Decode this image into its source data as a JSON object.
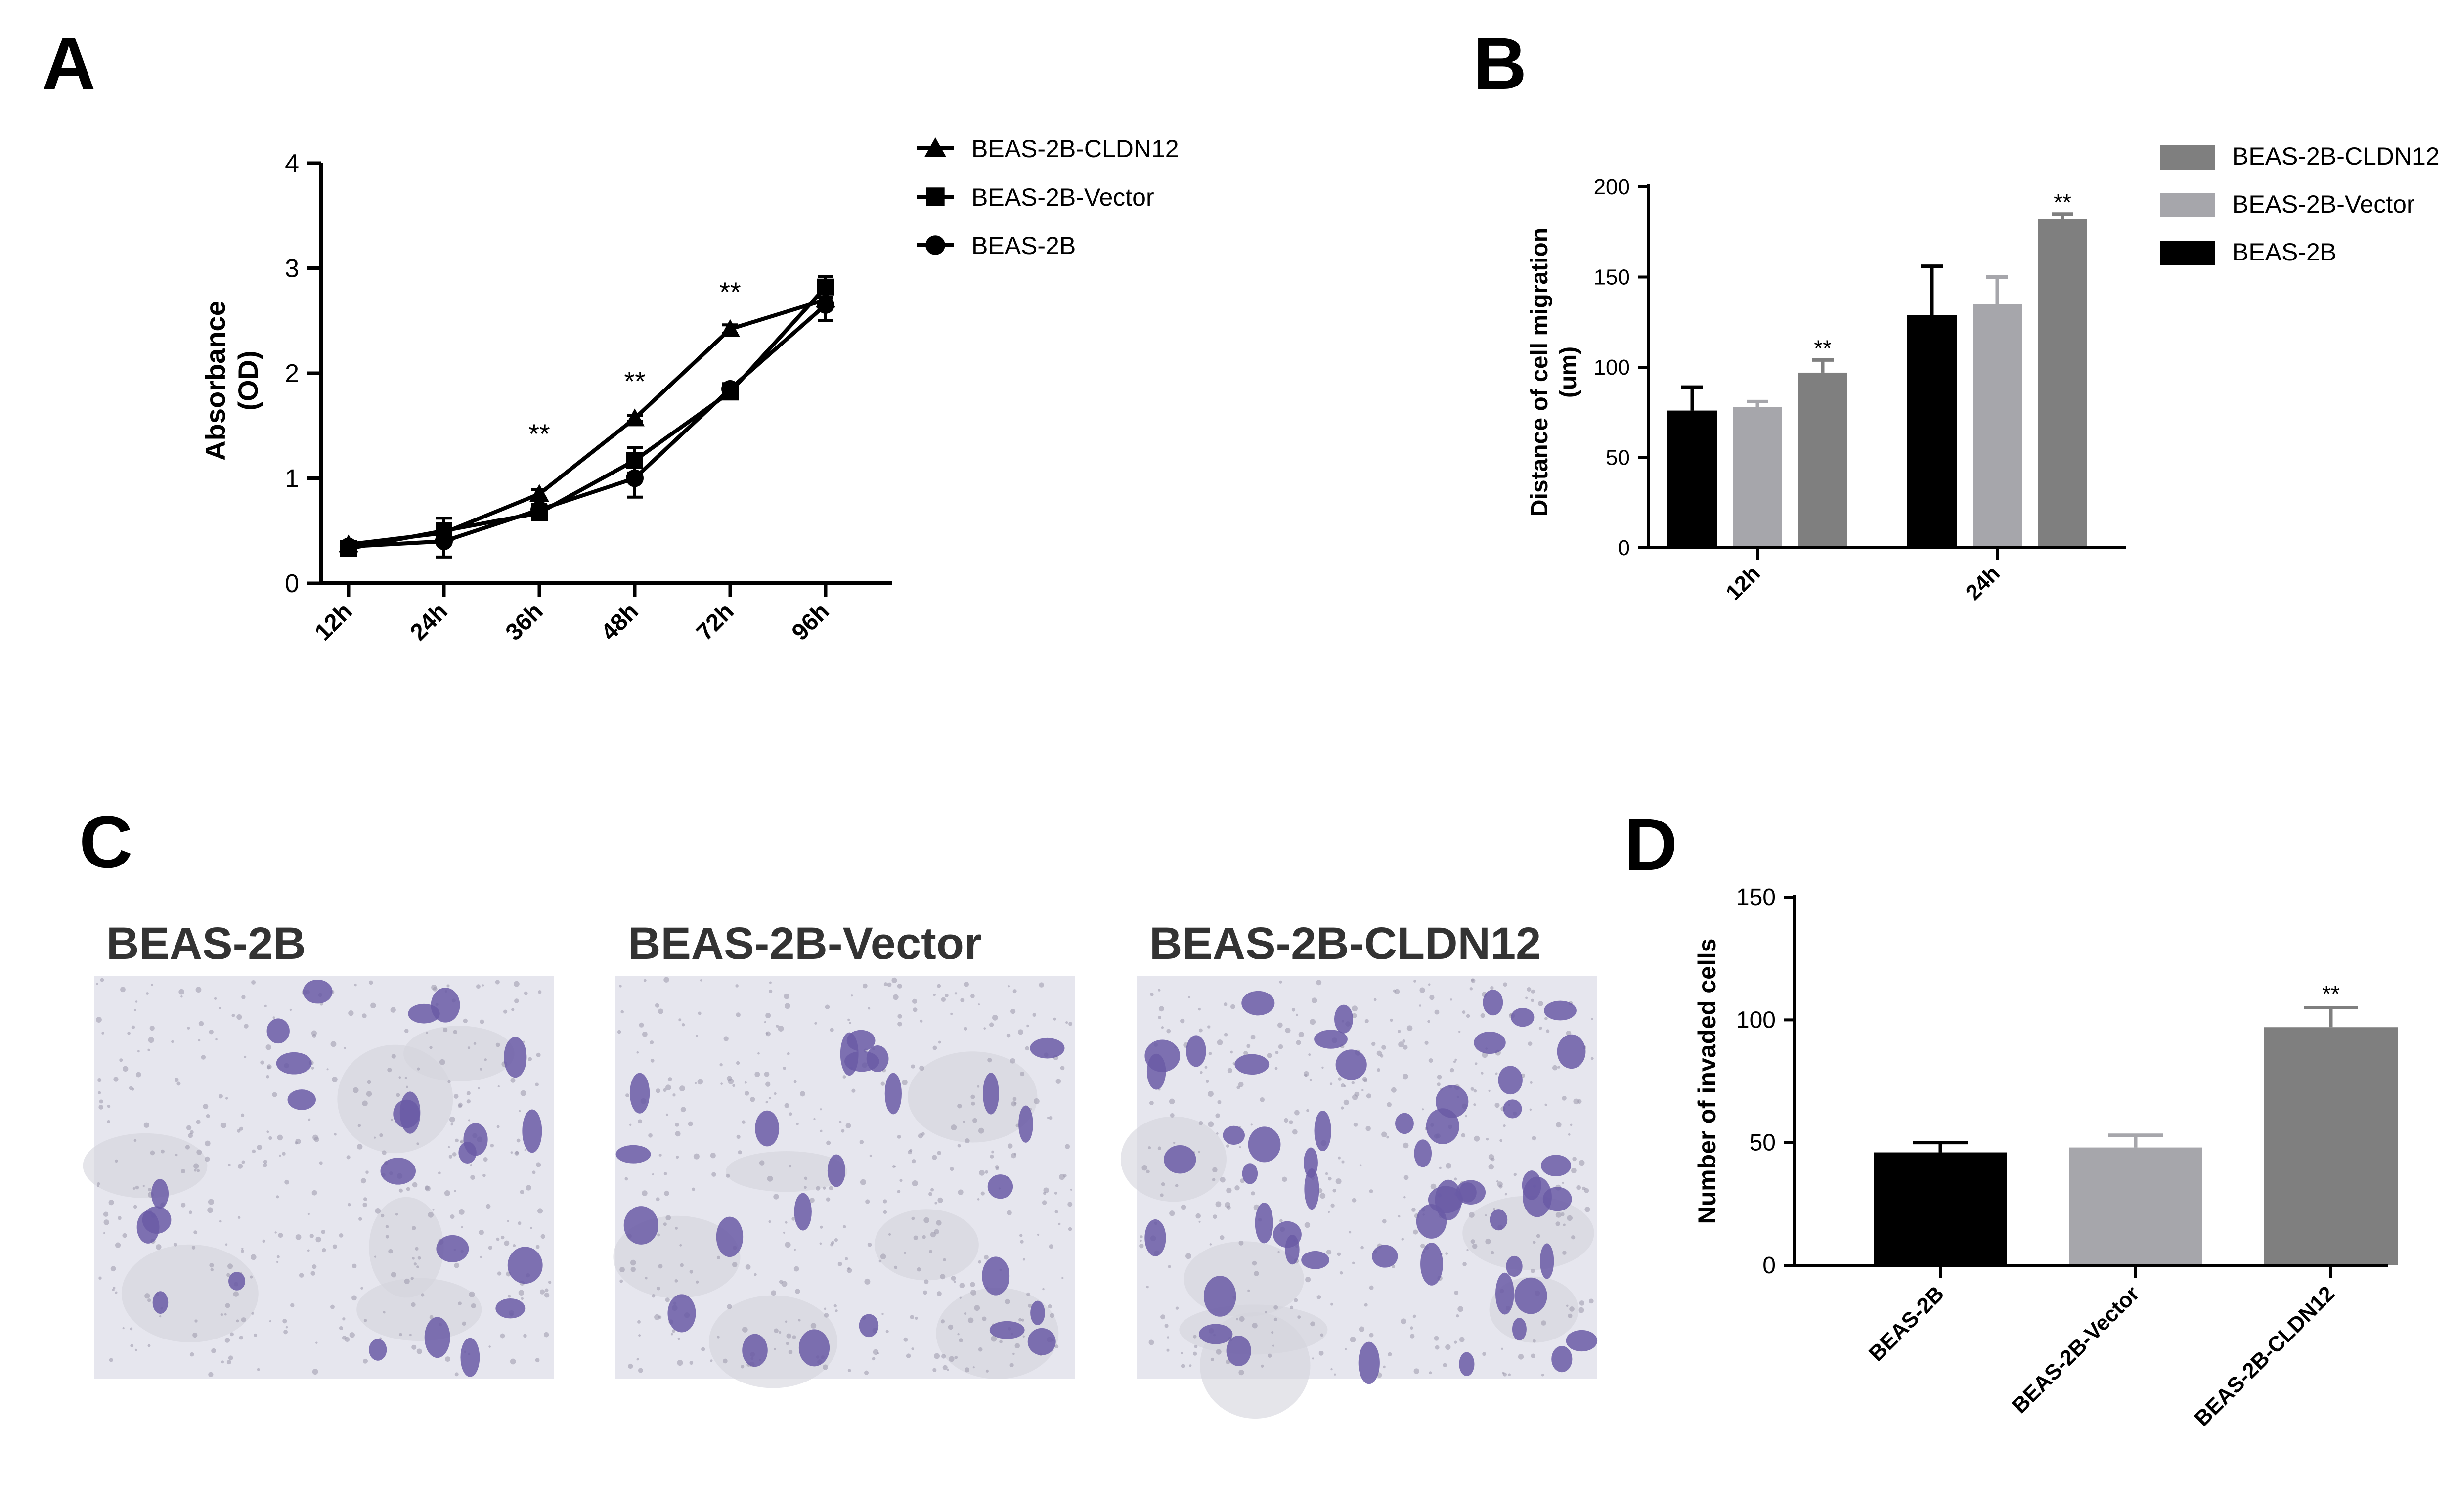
{
  "panels": {
    "A": {
      "letter": "A"
    },
    "B": {
      "letter": "B"
    },
    "C": {
      "letter": "C"
    },
    "D": {
      "letter": "D"
    }
  },
  "chart_data": [
    {
      "panel": "A",
      "type": "line",
      "categories": [
        "12h",
        "24h",
        "36h",
        "48h",
        "72h",
        "96h"
      ],
      "ylabel_lines": [
        "Absorbance",
        "(OD)"
      ],
      "ylim": [
        0,
        4
      ],
      "yticks": [
        "0",
        "1",
        "2",
        "3",
        "4"
      ],
      "series": [
        {
          "name": "BEAS-2B-CLDN12",
          "marker": "triangle",
          "values": [
            0.37,
            0.48,
            0.85,
            1.57,
            2.42,
            2.7
          ],
          "errors": [
            0.03,
            0.05,
            0.04,
            0.03,
            0.04,
            0.08
          ]
        },
        {
          "name": "BEAS-2B-Vector",
          "marker": "square",
          "values": [
            0.33,
            0.5,
            0.67,
            1.17,
            1.82,
            2.82
          ],
          "errors": [
            0.04,
            0.12,
            0.05,
            0.12,
            0.05,
            0.1
          ]
        },
        {
          "name": "BEAS-2B",
          "marker": "circle",
          "values": [
            0.35,
            0.4,
            0.7,
            1.0,
            1.85,
            2.65
          ],
          "errors": [
            0.05,
            0.15,
            0.05,
            0.18,
            0.05,
            0.15
          ]
        }
      ],
      "annotations": [
        {
          "x": "36h",
          "text": "**",
          "y": 1.45
        },
        {
          "x": "48h",
          "text": "**",
          "y": 1.95
        },
        {
          "x": "72h",
          "text": "**",
          "y": 2.8
        }
      ]
    },
    {
      "panel": "B",
      "type": "bar",
      "categories": [
        "12h",
        "24h"
      ],
      "ylabel_lines": [
        "Distance of cell migration",
        "(um)"
      ],
      "ylim": [
        0,
        200
      ],
      "yticks": [
        "0",
        "50",
        "100",
        "150",
        "200"
      ],
      "series": [
        {
          "name": "BEAS-2B",
          "color": "#000000",
          "values": [
            76,
            129
          ],
          "errors": [
            13,
            27
          ]
        },
        {
          "name": "BEAS-2B-Vector",
          "color": "#a6a6ab",
          "values": [
            78,
            135
          ],
          "errors": [
            3,
            15
          ]
        },
        {
          "name": "BEAS-2B-CLDN12",
          "color": "#7f7f7f",
          "values": [
            97,
            182
          ],
          "errors": [
            7,
            3
          ]
        }
      ],
      "legend_order": [
        "BEAS-2B-CLDN12",
        "BEAS-2B-Vector",
        "BEAS-2B"
      ],
      "annotations": [
        {
          "category": "12h",
          "series": "BEAS-2B-CLDN12",
          "text": "**"
        },
        {
          "category": "24h",
          "series": "BEAS-2B-CLDN12",
          "text": "**"
        }
      ]
    },
    {
      "panel": "D",
      "type": "bar",
      "categories": [
        "BEAS-2B",
        "BEAS-2B-Vector",
        "BEAS-2B-CLDN12"
      ],
      "ylabel": "Number of invaded cells",
      "ylim": [
        0,
        150
      ],
      "yticks": [
        "0",
        "50",
        "100",
        "150"
      ],
      "values": [
        46,
        48,
        97
      ],
      "errors": [
        4,
        5,
        8
      ],
      "colors": [
        "#000000",
        "#a6a6ab",
        "#7f7f7f"
      ],
      "annotations": [
        {
          "category": "BEAS-2B-CLDN12",
          "text": "**"
        }
      ]
    }
  ],
  "micrographs": {
    "labels": [
      "BEAS-2B",
      "BEAS-2B-Vector",
      "BEAS-2B-CLDN12"
    ],
    "stain_color": "#6a5aa6",
    "background_color": "#e6e6ee"
  }
}
